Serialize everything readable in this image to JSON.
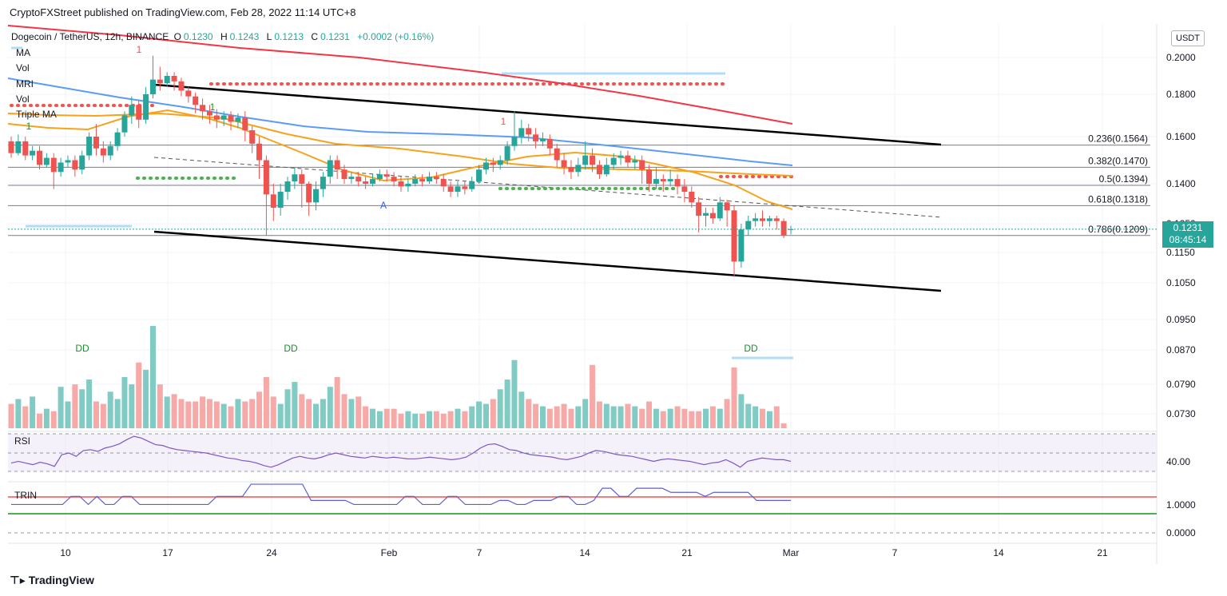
{
  "header": {
    "publisher_line": "CryptoFXStreet published on TradingView.com, Feb 28, 2022 11:14 UTC+8"
  },
  "symbol": {
    "name": "Dogecoin / TetherUS, 12h, BINANCE",
    "o_label": "O",
    "o_value": "0.1230",
    "h_label": "H",
    "h_value": "0.1243",
    "l_label": "L",
    "l_value": "0.1213",
    "c_label": "C",
    "c_value": "0.1231",
    "change": "+0.0002 (+0.16%)"
  },
  "indicators": [
    "MA",
    "Vol",
    "MRI",
    "Vol",
    "Triple MA"
  ],
  "price_axis": {
    "unit": "USDT",
    "last_price": "0.1231",
    "countdown": "08:45:14"
  },
  "colors": {
    "up": "#26a69a",
    "down": "#ef5350",
    "ma_red": "#f23645",
    "ma_blue": "#5b9cf6",
    "ma_orange": "#f7a21b",
    "rsi": "#7e57c2",
    "trin": "#5b5fd6",
    "green_line": "#4caf50"
  },
  "footer": {
    "brand": "TradingView"
  },
  "chart_data": {
    "type": "candlestick",
    "title": "Dogecoin / TetherUS, 12h, BINANCE",
    "interval": "12h",
    "price_ticks": [
      "0.2000",
      "0.1800",
      "0.1600",
      "0.1400",
      "0.1250",
      "0.1150",
      "0.1050",
      "0.0950",
      "0.0870",
      "0.0790",
      "0.0730"
    ],
    "date_ticks": [
      "10",
      "17",
      "24",
      "Feb",
      "7",
      "14",
      "21",
      "Mar",
      "7",
      "14",
      "21"
    ],
    "fib_levels": [
      {
        "label": "0.236(0.1564)",
        "price": 0.1564
      },
      {
        "label": "0.382(0.1470)",
        "price": 0.147
      },
      {
        "label": "0.5(0.1394)",
        "price": 0.1394
      },
      {
        "label": "0.618(0.1318)",
        "price": 0.1318
      },
      {
        "label": "0.786(0.1209)",
        "price": 0.1209
      }
    ],
    "candles": [
      [
        0.158,
        0.153,
        0.16,
        0.151
      ],
      [
        0.153,
        0.158,
        0.161,
        0.152
      ],
      [
        0.158,
        0.152,
        0.16,
        0.15
      ],
      [
        0.152,
        0.154,
        0.156,
        0.15
      ],
      [
        0.154,
        0.148,
        0.156,
        0.146
      ],
      [
        0.148,
        0.151,
        0.153,
        0.147
      ],
      [
        0.151,
        0.145,
        0.153,
        0.138
      ],
      [
        0.145,
        0.149,
        0.151,
        0.143
      ],
      [
        0.149,
        0.15,
        0.152,
        0.147
      ],
      [
        0.15,
        0.146,
        0.152,
        0.143
      ],
      [
        0.146,
        0.152,
        0.154,
        0.144
      ],
      [
        0.152,
        0.16,
        0.162,
        0.15
      ],
      [
        0.16,
        0.155,
        0.166,
        0.152
      ],
      [
        0.155,
        0.152,
        0.158,
        0.149
      ],
      [
        0.152,
        0.156,
        0.158,
        0.15
      ],
      [
        0.156,
        0.162,
        0.164,
        0.154
      ],
      [
        0.162,
        0.17,
        0.172,
        0.16
      ],
      [
        0.17,
        0.175,
        0.179,
        0.166
      ],
      [
        0.175,
        0.168,
        0.177,
        0.164
      ],
      [
        0.168,
        0.18,
        0.184,
        0.166
      ],
      [
        0.18,
        0.188,
        0.201,
        0.178
      ],
      [
        0.188,
        0.186,
        0.195,
        0.182
      ],
      [
        0.186,
        0.19,
        0.192,
        0.184
      ],
      [
        0.19,
        0.187,
        0.192,
        0.182
      ],
      [
        0.187,
        0.182,
        0.189,
        0.179
      ],
      [
        0.182,
        0.179,
        0.184,
        0.176
      ],
      [
        0.179,
        0.175,
        0.181,
        0.171
      ],
      [
        0.175,
        0.172,
        0.178,
        0.168
      ],
      [
        0.172,
        0.17,
        0.175,
        0.166
      ],
      [
        0.17,
        0.168,
        0.173,
        0.164
      ],
      [
        0.168,
        0.17,
        0.172,
        0.165
      ],
      [
        0.17,
        0.167,
        0.172,
        0.163
      ],
      [
        0.167,
        0.169,
        0.171,
        0.164
      ],
      [
        0.169,
        0.163,
        0.172,
        0.158
      ],
      [
        0.163,
        0.157,
        0.165,
        0.153
      ],
      [
        0.157,
        0.15,
        0.16,
        0.142
      ],
      [
        0.15,
        0.136,
        0.152,
        0.121
      ],
      [
        0.136,
        0.131,
        0.14,
        0.126
      ],
      [
        0.131,
        0.137,
        0.14,
        0.128
      ],
      [
        0.137,
        0.141,
        0.143,
        0.134
      ],
      [
        0.141,
        0.144,
        0.147,
        0.138
      ],
      [
        0.144,
        0.14,
        0.146,
        0.131
      ],
      [
        0.14,
        0.133,
        0.141,
        0.128
      ],
      [
        0.133,
        0.138,
        0.141,
        0.13
      ],
      [
        0.138,
        0.143,
        0.145,
        0.135
      ],
      [
        0.143,
        0.15,
        0.152,
        0.14
      ],
      [
        0.15,
        0.146,
        0.152,
        0.142
      ],
      [
        0.146,
        0.142,
        0.148,
        0.14
      ],
      [
        0.142,
        0.143,
        0.145,
        0.14
      ],
      [
        0.143,
        0.141,
        0.145,
        0.139
      ],
      [
        0.141,
        0.14,
        0.143,
        0.138
      ],
      [
        0.14,
        0.142,
        0.144,
        0.139
      ],
      [
        0.142,
        0.144,
        0.146,
        0.141
      ],
      [
        0.144,
        0.143,
        0.146,
        0.141
      ],
      [
        0.143,
        0.141,
        0.145,
        0.139
      ],
      [
        0.141,
        0.139,
        0.143,
        0.137
      ],
      [
        0.139,
        0.14,
        0.142,
        0.137
      ],
      [
        0.14,
        0.142,
        0.144,
        0.139
      ],
      [
        0.142,
        0.141,
        0.144,
        0.139
      ],
      [
        0.141,
        0.143,
        0.145,
        0.14
      ],
      [
        0.143,
        0.142,
        0.145,
        0.14
      ],
      [
        0.142,
        0.139,
        0.144,
        0.137
      ],
      [
        0.139,
        0.137,
        0.141,
        0.135
      ],
      [
        0.137,
        0.139,
        0.141,
        0.135
      ],
      [
        0.139,
        0.138,
        0.141,
        0.136
      ],
      [
        0.138,
        0.141,
        0.143,
        0.137
      ],
      [
        0.141,
        0.146,
        0.148,
        0.14
      ],
      [
        0.146,
        0.149,
        0.151,
        0.144
      ],
      [
        0.149,
        0.148,
        0.151,
        0.145
      ],
      [
        0.148,
        0.15,
        0.152,
        0.146
      ],
      [
        0.15,
        0.156,
        0.158,
        0.148
      ],
      [
        0.156,
        0.16,
        0.172,
        0.154
      ],
      [
        0.16,
        0.164,
        0.168,
        0.157
      ],
      [
        0.164,
        0.161,
        0.166,
        0.158
      ],
      [
        0.161,
        0.158,
        0.164,
        0.155
      ],
      [
        0.158,
        0.159,
        0.162,
        0.156
      ],
      [
        0.159,
        0.155,
        0.161,
        0.152
      ],
      [
        0.155,
        0.15,
        0.157,
        0.147
      ],
      [
        0.15,
        0.147,
        0.153,
        0.144
      ],
      [
        0.147,
        0.145,
        0.15,
        0.142
      ],
      [
        0.145,
        0.148,
        0.151,
        0.143
      ],
      [
        0.148,
        0.152,
        0.158,
        0.146
      ],
      [
        0.152,
        0.148,
        0.155,
        0.145
      ],
      [
        0.148,
        0.144,
        0.15,
        0.142
      ],
      [
        0.144,
        0.148,
        0.151,
        0.143
      ],
      [
        0.148,
        0.151,
        0.153,
        0.146
      ],
      [
        0.151,
        0.152,
        0.154,
        0.148
      ],
      [
        0.152,
        0.149,
        0.154,
        0.147
      ],
      [
        0.149,
        0.15,
        0.152,
        0.146
      ],
      [
        0.15,
        0.146,
        0.152,
        0.14
      ],
      [
        0.146,
        0.14,
        0.148,
        0.137
      ],
      [
        0.14,
        0.142,
        0.147,
        0.138
      ],
      [
        0.142,
        0.141,
        0.144,
        0.137
      ],
      [
        0.141,
        0.142,
        0.146,
        0.139
      ],
      [
        0.142,
        0.139,
        0.144,
        0.136
      ],
      [
        0.139,
        0.137,
        0.142,
        0.133
      ],
      [
        0.137,
        0.133,
        0.139,
        0.131
      ],
      [
        0.133,
        0.128,
        0.135,
        0.122
      ],
      [
        0.128,
        0.129,
        0.131,
        0.124
      ],
      [
        0.129,
        0.127,
        0.131,
        0.125
      ],
      [
        0.127,
        0.133,
        0.135,
        0.126
      ],
      [
        0.133,
        0.13,
        0.134,
        0.124
      ],
      [
        0.13,
        0.112,
        0.132,
        0.107
      ],
      [
        0.112,
        0.123,
        0.125,
        0.11
      ],
      [
        0.123,
        0.126,
        0.128,
        0.121
      ],
      [
        0.126,
        0.127,
        0.129,
        0.124
      ],
      [
        0.127,
        0.126,
        0.13,
        0.124
      ],
      [
        0.126,
        0.127,
        0.128,
        0.124
      ],
      [
        0.127,
        0.126,
        0.128,
        0.123
      ],
      [
        0.126,
        0.121,
        0.127,
        0.12
      ],
      [
        0.123,
        0.1231,
        0.1243,
        0.1213
      ]
    ],
    "volume": [
      10,
      12,
      9,
      13,
      6,
      8,
      7,
      17,
      11,
      18,
      16,
      20,
      11,
      10,
      15,
      12,
      21,
      18,
      27,
      24,
      42,
      18,
      13,
      14,
      12,
      11,
      11,
      13,
      12,
      11,
      10,
      9,
      12,
      11,
      12,
      15,
      21,
      13,
      10,
      16,
      19,
      14,
      12,
      10,
      12,
      17,
      21,
      14,
      12,
      13,
      9,
      8,
      7,
      8,
      8,
      6,
      7,
      6,
      6,
      7,
      7,
      6,
      7,
      8,
      7,
      9,
      11,
      10,
      12,
      16,
      20,
      28,
      15,
      12,
      10,
      9,
      8,
      9,
      10,
      8,
      9,
      12,
      26,
      11,
      10,
      9,
      9,
      10,
      9,
      8,
      11,
      8,
      7,
      8,
      9,
      8,
      7,
      7,
      8,
      9,
      8,
      12,
      25,
      14,
      10,
      9,
      8,
      7,
      9,
      2
    ],
    "rsi": [
      40,
      42,
      40,
      38,
      41,
      39,
      36,
      50,
      52,
      48,
      55,
      56,
      54,
      58,
      60,
      63,
      68,
      72,
      70,
      66,
      62,
      61,
      58,
      56,
      55,
      54,
      53,
      52,
      50,
      48,
      46,
      45,
      43,
      42,
      40,
      37,
      35,
      38,
      42,
      46,
      48,
      46,
      45,
      47,
      50,
      52,
      50,
      48,
      47,
      46,
      48,
      47,
      46,
      47,
      46,
      45,
      45,
      46,
      47,
      46,
      45,
      44,
      45,
      47,
      52,
      58,
      62,
      63,
      60,
      56,
      55,
      52,
      50,
      49,
      48,
      47,
      45,
      44,
      46,
      48,
      52,
      55,
      54,
      52,
      50,
      49,
      48,
      46,
      44,
      42,
      44,
      45,
      44,
      43,
      42,
      40,
      38,
      40,
      41,
      44,
      40,
      35,
      42,
      44,
      46,
      45,
      44,
      44,
      42
    ],
    "rsi_axis_label": "40.00",
    "trin": [
      0.7,
      0.7,
      0.7,
      0.7,
      0.7,
      0.7,
      0.7,
      0.9,
      0.9,
      0.7,
      0.9,
      0.7,
      0.7,
      0.9,
      0.9,
      0.7,
      0.7,
      0.7,
      0.7,
      0.7,
      0.7,
      0.7,
      0.7,
      0.7,
      0.9,
      0.9,
      0.9,
      0.9,
      1.2,
      1.2,
      1.2,
      1.2,
      1.2,
      1.2,
      1.2,
      0.8,
      0.8,
      0.8,
      0.8,
      0.8,
      0.7,
      0.7,
      0.7,
      0.7,
      0.7,
      0.7,
      0.9,
      0.9,
      0.7,
      0.7,
      0.7,
      0.9,
      0.9,
      0.7,
      0.7,
      0.7,
      0.7,
      0.8,
      0.8,
      0.7,
      0.7,
      0.8,
      0.8,
      0.8,
      0.9,
      0.9,
      0.7,
      0.7,
      0.8,
      1.1,
      1.1,
      0.9,
      0.9,
      1.1,
      1.1,
      1.1,
      1.1,
      1.0,
      1.0,
      1.0,
      1.0,
      0.9,
      1.0,
      1.0,
      1.0,
      1.0,
      1.0,
      0.8,
      0.8,
      0.8,
      0.8,
      0.8
    ],
    "trin_axis_labels": [
      "1.0000",
      "0.0000"
    ],
    "signal_labels": [
      "DD",
      "DD",
      "DD",
      "A",
      "1",
      "1",
      "1",
      "1"
    ]
  }
}
